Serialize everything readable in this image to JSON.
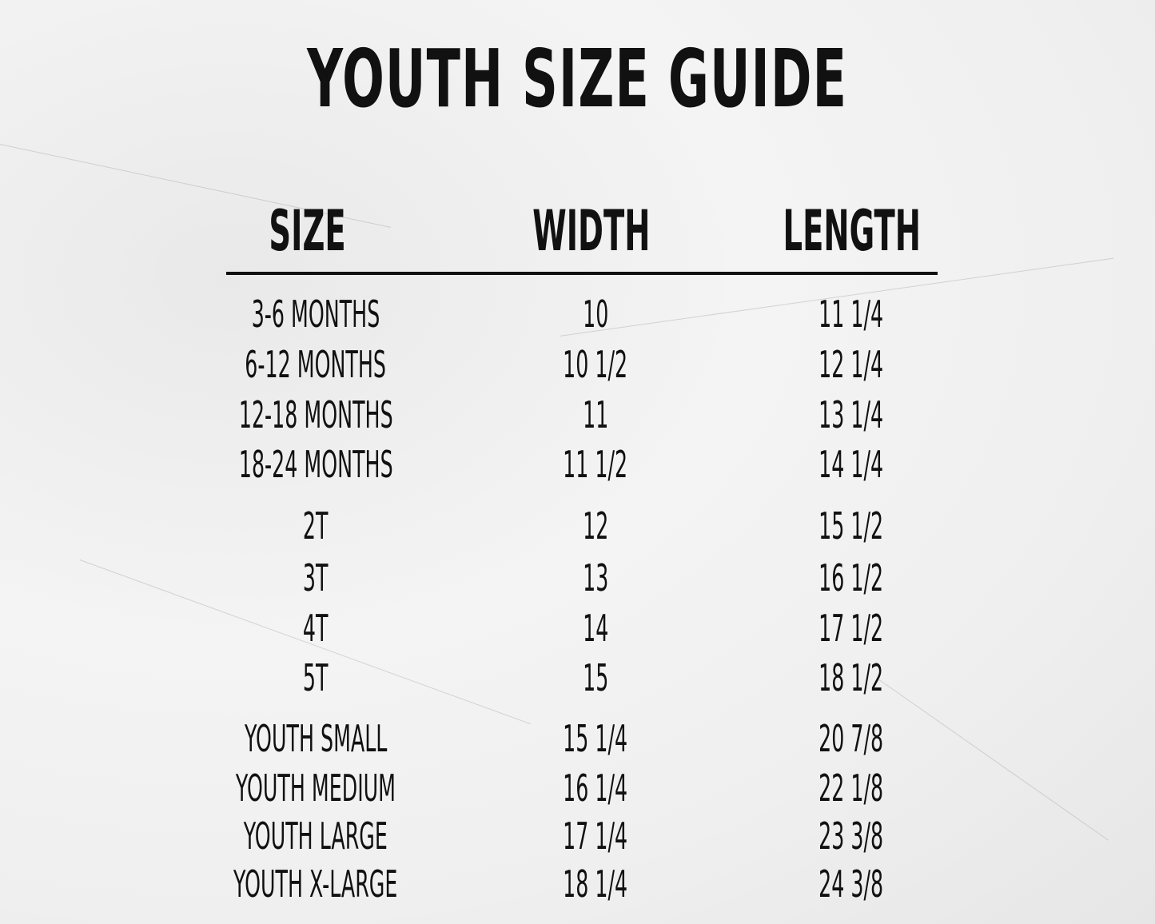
{
  "title": "YOUTH SIZE GUIDE",
  "headers": [
    "SIZE",
    "WIDTH",
    "LENGTH"
  ],
  "rows": [
    [
      "3-6 MONTHS",
      "10",
      "11 1/4"
    ],
    [
      "6-12 MONTHS",
      "10 1/2",
      "12 1/4"
    ],
    [
      "12-18 MONTHS",
      "11",
      "13 1/4"
    ],
    [
      "18-24 MONTHS",
      "11 1/2",
      "14 1/4"
    ],
    [
      "2T",
      "12",
      "15 1/2"
    ],
    [
      "3T",
      "13",
      "16 1/2"
    ],
    [
      "4T",
      "14",
      "17 1/2"
    ],
    [
      "5T",
      "15",
      "18 1/2"
    ],
    [
      "YOUTH SMALL",
      "15 1/4",
      "20 7/8"
    ],
    [
      "YOUTH MEDIUM",
      "16 1/4",
      "22 1/8"
    ],
    [
      "YOUTH LARGE",
      "17 1/4",
      "23 3/8"
    ],
    [
      "YOUTH X-LARGE",
      "18 1/4",
      "24 3/8"
    ]
  ]
}
